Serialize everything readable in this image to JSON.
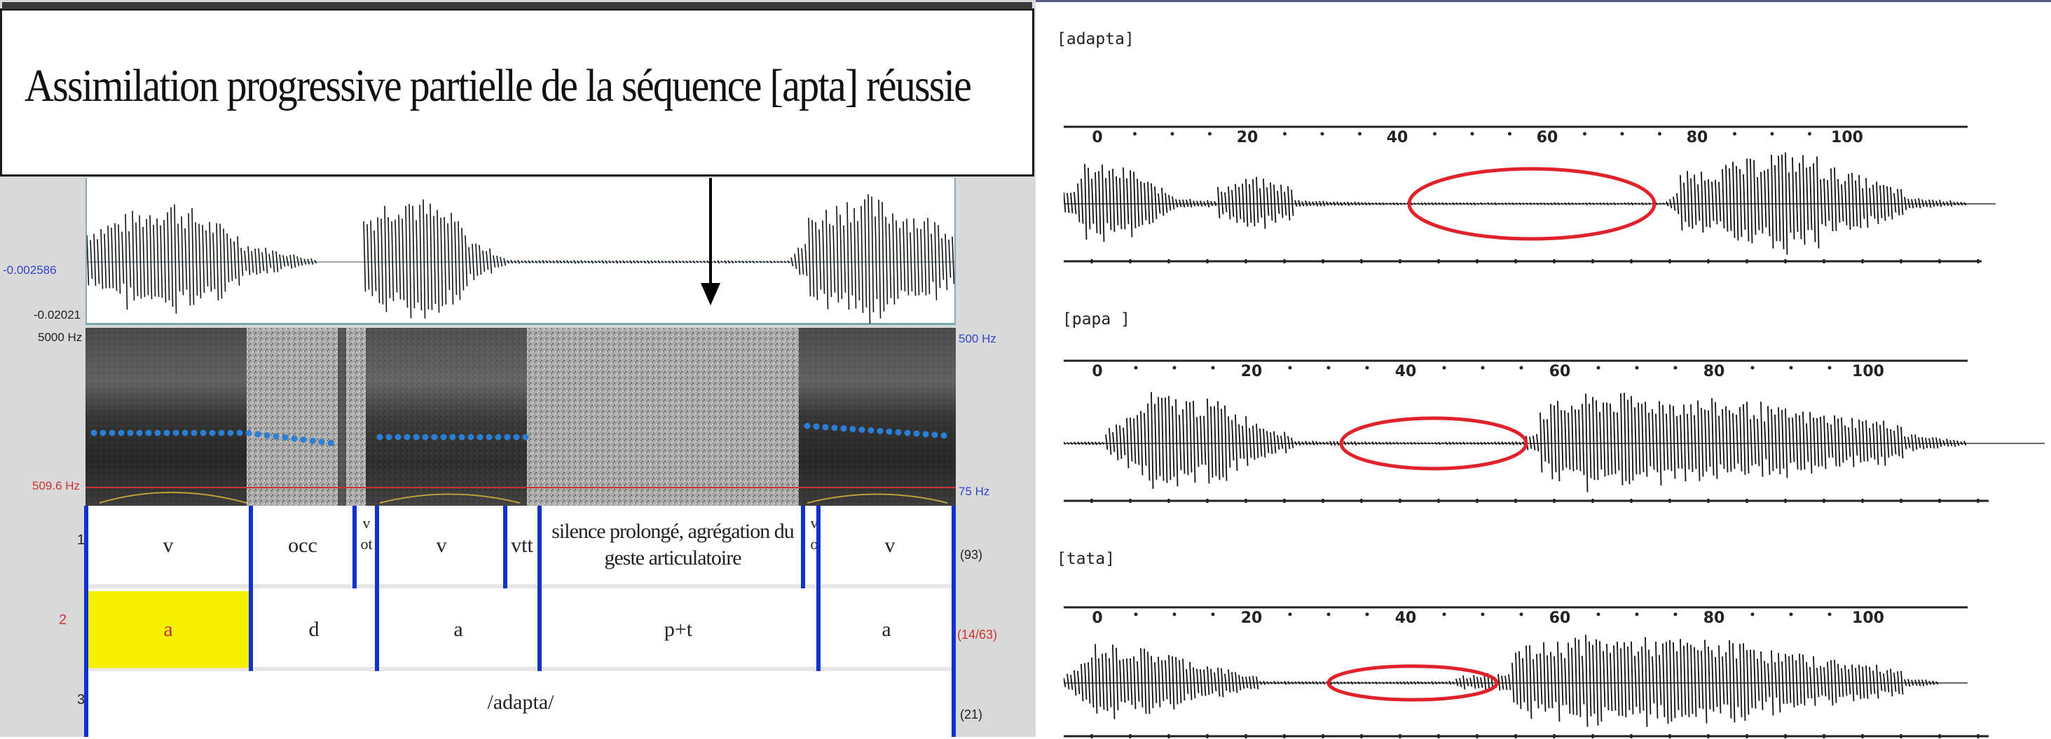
{
  "title": "Assimilation progressive  partielle de la séquence  [apta] réussie",
  "left_axis": {
    "amp_top": "-0.002586",
    "amp_bottom": "-0.02021",
    "freq_top": "5000 Hz",
    "freq_bottom": "509.6 Hz",
    "right_freq_top": "500 Hz",
    "right_freq_bottom": "75 Hz"
  },
  "tiers": {
    "tier1_label": "1",
    "tier2_label": "2",
    "tier3_label": "3",
    "row1": [
      "v",
      "occ",
      "v\not",
      "v",
      "vtt",
      "silence prolongé, agrégation du geste articulatoire",
      "v\no",
      "v"
    ],
    "row2": [
      "a",
      "d",
      "a",
      "p+t",
      "a"
    ],
    "row3": "/adapta/",
    "right_counts": [
      "(93)",
      "(14/63)",
      "(21)"
    ]
  },
  "plots": [
    {
      "label": "[adapta]",
      "ticks": [
        "0",
        "20",
        "40",
        "60",
        "80",
        "100"
      ]
    },
    {
      "label": "[papa ]",
      "ticks": [
        "0",
        "20",
        "40",
        "60",
        "80",
        "100"
      ]
    },
    {
      "label": "[tata]",
      "ticks": [
        "0",
        "20",
        "40",
        "60",
        "80",
        "100"
      ]
    }
  ],
  "colors": {
    "boundary": "#1133cc",
    "highlight": "#f5f000",
    "ellipse": "#e0222a",
    "pitch": "#2a7fd4",
    "axis_blue": "#3344cc",
    "axis_red": "#cc3333",
    "axis_green": "#33aa33"
  }
}
